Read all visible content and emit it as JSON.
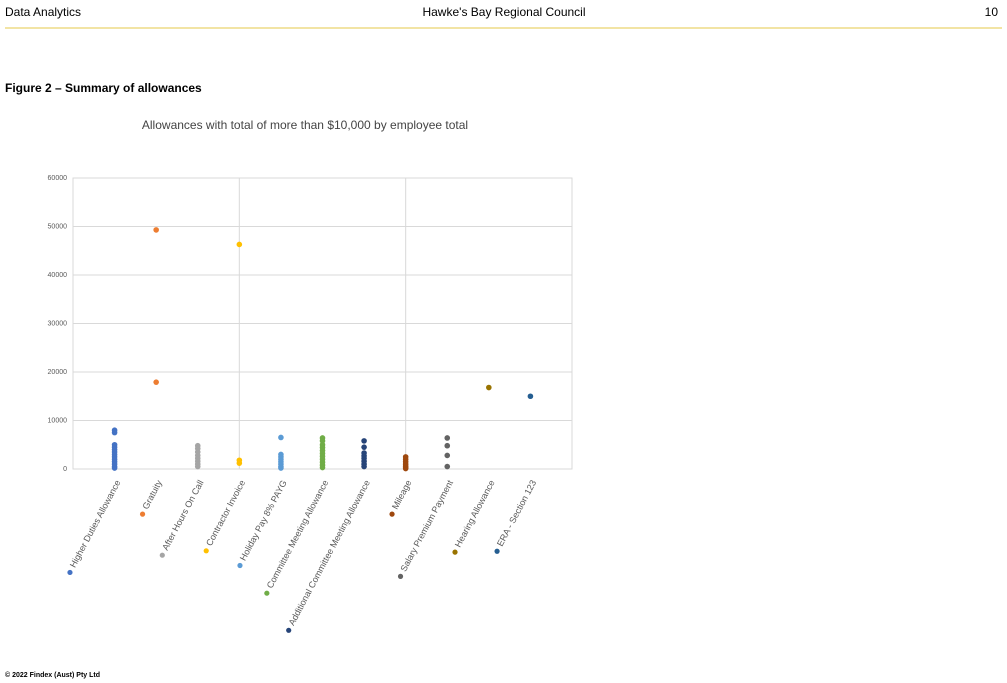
{
  "header": {
    "left": "Data Analytics",
    "center": "Hawke's Bay Regional Council",
    "page": "10"
  },
  "figure_caption": "Figure 2 – Summary of allowances",
  "chart_data": {
    "type": "strip",
    "title": "Allowances with total of more than $10,000 by employee total",
    "xlim": [
      0,
      12
    ],
    "xticks": [
      0,
      4,
      8,
      12
    ],
    "ylim": [
      0,
      60000
    ],
    "yticks": [
      0,
      10000,
      20000,
      30000,
      40000,
      50000,
      60000
    ],
    "grid": true,
    "series": [
      {
        "name": "Higher Duties Allowance",
        "color": "#4472c4",
        "x": 1,
        "values": [
          8000,
          7500,
          5000,
          4500,
          4000,
          3500,
          3000,
          2500,
          2000,
          1500,
          1000,
          500,
          200
        ]
      },
      {
        "name": "Gratuity",
        "color": "#ed7d31",
        "x": 2,
        "values": [
          49300,
          17900
        ]
      },
      {
        "name": "After Hours On Call",
        "color": "#a5a5a5",
        "x": 3,
        "values": [
          4800,
          4200,
          3500,
          2800,
          2200,
          1600,
          1000,
          500
        ]
      },
      {
        "name": "Contractor Invoice",
        "color": "#ffc000",
        "x": 4,
        "values": [
          46300,
          1800,
          1200
        ]
      },
      {
        "name": "Holiday Pay 8% PAYG",
        "color": "#5b9bd5",
        "x": 5,
        "values": [
          6500,
          3000,
          2500,
          2000,
          1500,
          1000,
          500,
          200
        ]
      },
      {
        "name": "Committee Meeting Allowance",
        "color": "#70ad47",
        "x": 6,
        "values": [
          6400,
          5800,
          5000,
          4400,
          3800,
          3200,
          2600,
          2000,
          1400,
          800,
          300
        ]
      },
      {
        "name": "Additional Committee Meeting Allowance",
        "color": "#264478",
        "x": 7,
        "values": [
          5800,
          4500,
          3300,
          2700,
          2200,
          1600,
          1000,
          500
        ]
      },
      {
        "name": "Mileage",
        "color": "#9e480e",
        "x": 8,
        "values": [
          2500,
          2000,
          1500,
          1000,
          600,
          300,
          100
        ]
      },
      {
        "name": "Salary Premium Payment",
        "color": "#636363",
        "x": 9,
        "values": [
          6400,
          4800,
          2800,
          500
        ]
      },
      {
        "name": "Hearing Allowance",
        "color": "#997300",
        "x": 10,
        "values": [
          16800
        ]
      },
      {
        "name": "ERA - Section 123",
        "color": "#255e91",
        "x": 11,
        "values": [
          15000
        ]
      }
    ]
  },
  "footer": "© 2022 Findex (Aust) Pty Ltd"
}
